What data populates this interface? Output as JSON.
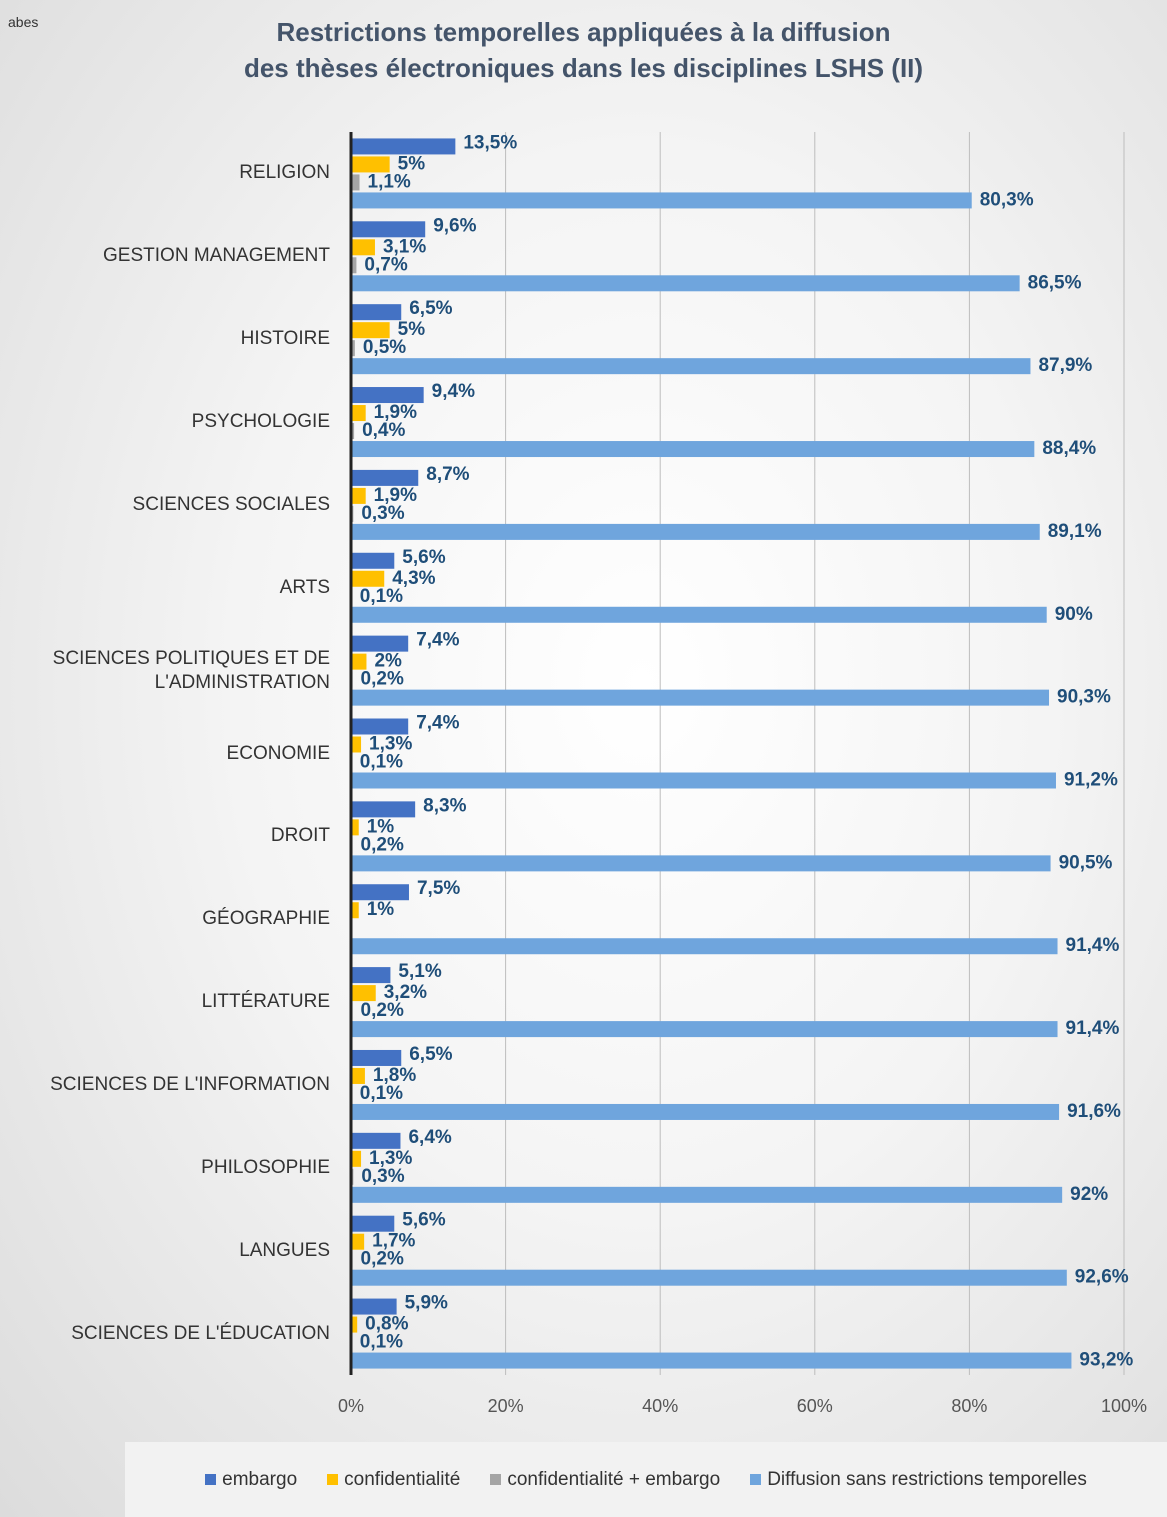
{
  "logo": "abes",
  "chart_data": {
    "type": "barh",
    "title": [
      "Restrictions temporelles appliquées à la diffusion",
      "des thèses électroniques dans les disciplines LSHS (II)"
    ],
    "categories": [
      "RELIGION",
      "GESTION MANAGEMENT",
      "HISTOIRE",
      "PSYCHOLOGIE",
      "SCIENCES SOCIALES",
      "ARTS",
      "SCIENCES POLITIQUES ET DE L'ADMINISTRATION",
      "ECONOMIE",
      "DROIT",
      "GÉOGRAPHIE",
      "LITTÉRATURE",
      "SCIENCES DE L'INFORMATION",
      "PHILOSOPHIE",
      "LANGUES",
      "SCIENCES DE L'ÉDUCATION"
    ],
    "series": [
      {
        "name": "embargo",
        "color": "#4472c4",
        "values": [
          13.5,
          9.6,
          6.5,
          9.4,
          8.7,
          5.6,
          7.4,
          7.4,
          8.3,
          7.5,
          5.1,
          6.5,
          6.4,
          5.6,
          5.9
        ],
        "value_labels": [
          "13,5%",
          "9,6%",
          "6,5%",
          "9,4%",
          "8,7%",
          "5,6%",
          "7,4%",
          "7,4%",
          "8,3%",
          "7,5%",
          "5,1%",
          "6,5%",
          "6,4%",
          "5,6%",
          "5,9%"
        ]
      },
      {
        "name": "confidentialité",
        "color": "#ffc000",
        "values": [
          5,
          3.1,
          5,
          1.9,
          1.9,
          4.3,
          2,
          1.3,
          1,
          1,
          3.2,
          1.8,
          1.3,
          1.7,
          0.8
        ],
        "value_labels": [
          "5%",
          "3,1%",
          "5%",
          "1,9%",
          "1,9%",
          "4,3%",
          "2%",
          "1,3%",
          "1%",
          "1%",
          "3,2%",
          "1,8%",
          "1,3%",
          "1,7%",
          "0,8%"
        ]
      },
      {
        "name": "confidentialité + embargo",
        "color": "#a5a5a5",
        "values": [
          1.1,
          0.7,
          0.5,
          0.4,
          0.3,
          0.1,
          0.2,
          0.1,
          0.2,
          null,
          0.2,
          0.1,
          0.3,
          0.2,
          0.1
        ],
        "value_labels": [
          "1,1%",
          "0,7%",
          "0,5%",
          "0,4%",
          "0,3%",
          "0,1%",
          "0,2%",
          "0,1%",
          "0,2%",
          null,
          "0,2%",
          "0,1%",
          "0,3%",
          "0,2%",
          "0,1%"
        ]
      },
      {
        "name": "Diffusion sans restrictions temporelles",
        "color": "#6fa5dd",
        "values": [
          80.3,
          86.5,
          87.9,
          88.4,
          89.1,
          90,
          90.3,
          91.2,
          90.5,
          91.4,
          91.4,
          91.6,
          92,
          92.6,
          93.2
        ],
        "value_labels": [
          "80,3%",
          "86,5%",
          "87,9%",
          "88,4%",
          "89,1%",
          "90%",
          "90,3%",
          "91,2%",
          "90,5%",
          "91,4%",
          "91,4%",
          "91,6%",
          "92%",
          "92,6%",
          "93,2%"
        ]
      }
    ],
    "xlim": [
      0,
      100
    ],
    "xticks": [
      {
        "value": 0,
        "label": "0%"
      },
      {
        "value": 20,
        "label": "20%"
      },
      {
        "value": 40,
        "label": "40%"
      },
      {
        "value": 60,
        "label": "60%"
      },
      {
        "value": 80,
        "label": "80%"
      },
      {
        "value": 100,
        "label": "100%"
      }
    ],
    "grid": true,
    "legend": "bottom"
  }
}
